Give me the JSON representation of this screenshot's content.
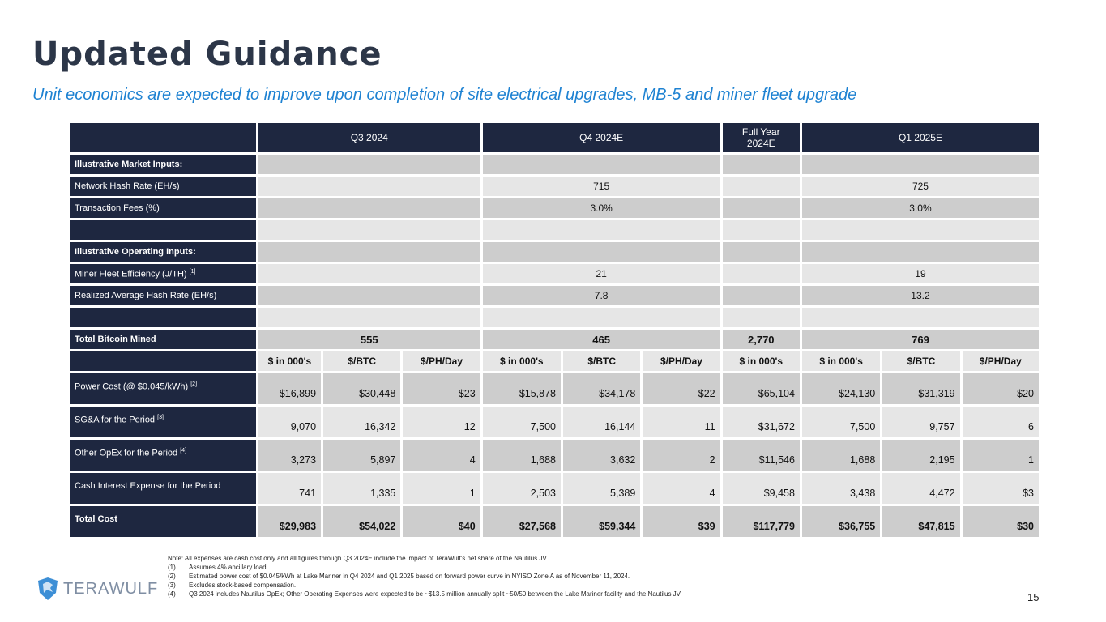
{
  "title": "Updated Guidance",
  "subtitle": "Unit economics are expected to improve upon completion of site electrical upgrades, MB-5 and miner fleet upgrade",
  "colors": {
    "navy": "#1e2740",
    "title": "#2c3648",
    "accent": "#1e82d2",
    "row_dark": "#cdcdcd",
    "row_light": "#e6e6e6"
  },
  "table": {
    "periods": [
      "Q3 2024",
      "Q4 2024E",
      "Full Year 2024E",
      "Q1 2025E"
    ],
    "input_rows": [
      {
        "label": "Illustrative Market Inputs:",
        "bold": true,
        "values": [
          "",
          "",
          "",
          ""
        ]
      },
      {
        "label": "Network Hash Rate (EH/s)",
        "values": [
          "",
          "715",
          "",
          "725"
        ]
      },
      {
        "label": "Transaction Fees (%)",
        "values": [
          "",
          "3.0%",
          "",
          "3.0%"
        ]
      },
      {
        "label": "",
        "values": [
          "",
          "",
          "",
          ""
        ]
      },
      {
        "label": "Illustrative Operating Inputs:",
        "bold": true,
        "values": [
          "",
          "",
          "",
          ""
        ]
      },
      {
        "label": "Miner Fleet Efficiency (J/TH)",
        "note": "[1]",
        "values": [
          "",
          "21",
          "",
          "19"
        ]
      },
      {
        "label": "Realized Average Hash Rate (EH/s)",
        "values": [
          "",
          "7.8",
          "",
          "13.2"
        ]
      },
      {
        "label": "",
        "values": [
          "",
          "",
          "",
          ""
        ]
      },
      {
        "label": "Total Bitcoin Mined",
        "bold": true,
        "values": [
          "555",
          "465",
          "2,770",
          "769"
        ]
      }
    ],
    "subheaders": [
      "$ in 000's",
      "$/BTC",
      "$/PH/Day",
      "$ in 000's",
      "$/BTC",
      "$/PH/Day",
      "$ in 000's",
      "$ in 000's",
      "$/BTC",
      "$/PH/Day"
    ],
    "cost_rows": [
      {
        "label": "Power Cost (@ $0.045/kWh)",
        "note": "[2]",
        "values": [
          "$16,899",
          "$30,448",
          "$23",
          "$15,878",
          "$34,178",
          "$22",
          "$65,104",
          "$24,130",
          "$31,319",
          "$20"
        ]
      },
      {
        "label": "SG&A for the Period",
        "note": "[3]",
        "values": [
          "9,070",
          "16,342",
          "12",
          "7,500",
          "16,144",
          "11",
          "$31,672",
          "7,500",
          "9,757",
          "6"
        ]
      },
      {
        "label": "Other OpEx for the Period",
        "note": "[4]",
        "values": [
          "3,273",
          "5,897",
          "4",
          "1,688",
          "3,632",
          "2",
          "$11,546",
          "1,688",
          "2,195",
          "1"
        ]
      },
      {
        "label": "Cash Interest Expense for the Period",
        "values": [
          "741",
          "1,335",
          "1",
          "2,503",
          "5,389",
          "4",
          "$9,458",
          "3,438",
          "4,472",
          "$3"
        ]
      },
      {
        "label": "Total Cost",
        "bold": true,
        "values": [
          "$29,983",
          "$54,022",
          "$40",
          "$27,568",
          "$59,344",
          "$39",
          "$117,779",
          "$36,755",
          "$47,815",
          "$30"
        ]
      }
    ]
  },
  "notes": {
    "intro": "Note: All expenses are cash cost only and all figures through Q3 2024E include the impact of TeraWulf's net share of the Nautilus JV.",
    "items": [
      {
        "key": "(1)",
        "text": "Assumes 4% ancillary load."
      },
      {
        "key": "(2)",
        "text": "Estimated power cost of $0.045/kWh at Lake Mariner in Q4 2024 and Q1 2025 based on forward power curve in NYISO Zone A as of November 11, 2024."
      },
      {
        "key": "(3)",
        "text": "Excludes stock-based compensation."
      },
      {
        "key": "(4)",
        "text": "Q3 2024 includes Nautilus OpEx; Other Operating Expenses were expected to be ~$13.5 million annually split ~50/50 between the Lake Mariner facility and the Nautilus JV."
      }
    ]
  },
  "logo": {
    "text": "TERAWULF",
    "icon": "wolf-shield-icon"
  },
  "page_number": "15"
}
